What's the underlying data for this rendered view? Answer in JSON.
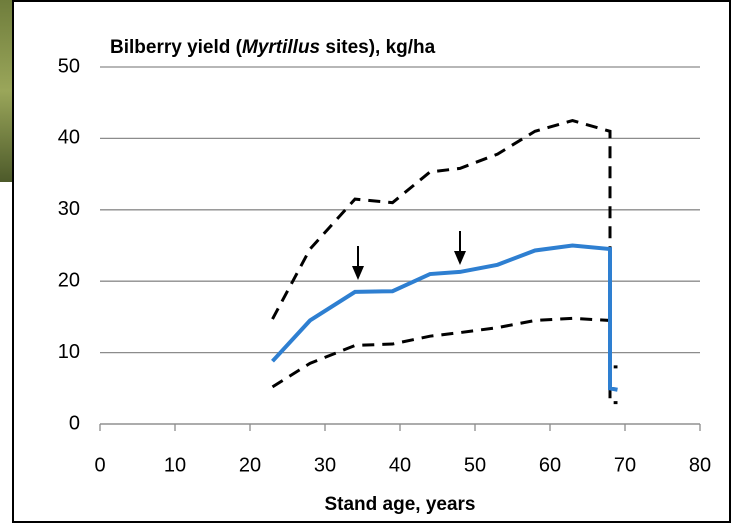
{
  "chart_data": {
    "type": "line",
    "title": [
      "Bilberry yield (",
      "Myrtillus",
      " sites), kg/ha"
    ],
    "x_label": "Stand age, years",
    "xlim": [
      0,
      80
    ],
    "xticks": [
      0,
      10,
      20,
      30,
      40,
      50,
      60,
      70,
      80
    ],
    "ylim": [
      0,
      50
    ],
    "yticks": [
      0,
      10,
      20,
      30,
      40,
      50
    ],
    "grid": true,
    "series": [
      {
        "color": "#000000",
        "dash": true,
        "x": [
          23,
          28,
          34,
          39,
          44,
          48,
          53,
          58,
          63,
          68,
          68,
          69
        ],
        "values": [
          14.7,
          24.5,
          31.5,
          31,
          35.3,
          35.8,
          37.8,
          41,
          42.5,
          41,
          3,
          3
        ]
      },
      {
        "color": "#000000",
        "dash": true,
        "x": [
          23,
          28,
          34,
          39,
          44,
          48,
          53,
          58,
          63,
          68,
          68,
          69
        ],
        "values": [
          5.2,
          8.5,
          11,
          11.2,
          12.3,
          12.8,
          13.5,
          14.5,
          14.8,
          14.5,
          8,
          8
        ]
      },
      {
        "color": "#2e7fd1",
        "dash": false,
        "x": [
          23,
          28,
          34,
          39,
          44,
          48,
          53,
          58,
          63,
          68,
          68,
          69
        ],
        "values": [
          8.8,
          14.5,
          18.5,
          18.6,
          21,
          21.3,
          22.3,
          24.3,
          25,
          24.5,
          5,
          4.8
        ]
      }
    ]
  }
}
